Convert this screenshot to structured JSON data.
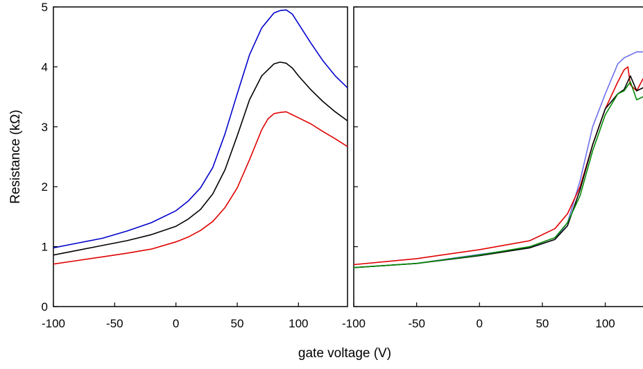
{
  "chart_data": {
    "type": "line",
    "ylabel": "Resistance (kΩ)",
    "xlabel": "gate voltage (V)",
    "y_ticks": [
      "0",
      "1",
      "2",
      "3",
      "4",
      "5"
    ],
    "ylim": [
      0,
      5
    ],
    "grid": false,
    "legend": "none",
    "panels": [
      {
        "id": "left",
        "xlim": [
          -100,
          140
        ],
        "x_ticks": [
          "-100",
          "-50",
          "0",
          "50",
          "100"
        ],
        "series": [
          {
            "color": "#0000cc",
            "x": [
              -100,
              -80,
              -60,
              -40,
              -20,
              0,
              10,
              20,
              30,
              40,
              50,
              60,
              70,
              80,
              85,
              90,
              95,
              100,
              110,
              120,
              130,
              140
            ],
            "y": [
              0.98,
              1.06,
              1.14,
              1.26,
              1.4,
              1.6,
              1.76,
              1.98,
              2.32,
              2.88,
              3.55,
              4.2,
              4.65,
              4.9,
              4.94,
              4.95,
              4.88,
              4.72,
              4.4,
              4.1,
              3.85,
              3.65
            ]
          },
          {
            "color": "#000000",
            "x": [
              -100,
              -80,
              -60,
              -40,
              -20,
              0,
              10,
              20,
              30,
              40,
              50,
              60,
              70,
              80,
              85,
              90,
              95,
              100,
              110,
              120,
              130,
              140
            ],
            "y": [
              0.86,
              0.94,
              1.02,
              1.1,
              1.2,
              1.34,
              1.46,
              1.62,
              1.88,
              2.28,
              2.85,
              3.45,
              3.85,
              4.05,
              4.08,
              4.06,
              3.98,
              3.85,
              3.62,
              3.42,
              3.25,
              3.1
            ]
          },
          {
            "color": "#e00000",
            "x": [
              -100,
              -80,
              -60,
              -40,
              -20,
              0,
              10,
              20,
              30,
              40,
              50,
              60,
              70,
              75,
              80,
              85,
              90,
              95,
              100,
              110,
              120,
              130,
              140
            ],
            "y": [
              0.71,
              0.77,
              0.83,
              0.89,
              0.96,
              1.08,
              1.16,
              1.27,
              1.42,
              1.65,
              1.98,
              2.45,
              2.95,
              3.13,
              3.22,
              3.24,
              3.25,
              3.2,
              3.15,
              3.05,
              2.92,
              2.8,
              2.67
            ]
          }
        ]
      },
      {
        "id": "right",
        "xlim": [
          -100,
          135
        ],
        "x_ticks": [
          "-100",
          "-50",
          "0",
          "50",
          "100"
        ],
        "series": [
          {
            "color": "#7070ee",
            "x": [
              -100,
              -50,
              0,
              40,
              60,
              70,
              80,
              90,
              100,
              110,
              115,
              120,
              125,
              130,
              135
            ],
            "y": [
              0.65,
              0.72,
              0.87,
              0.98,
              1.12,
              1.4,
              2.1,
              3.0,
              3.55,
              4.05,
              4.15,
              4.2,
              4.25,
              4.25,
              4.2
            ]
          },
          {
            "color": "#e00000",
            "x": [
              -100,
              -50,
              0,
              40,
              60,
              70,
              80,
              90,
              100,
              110,
              115,
              118,
              120,
              125,
              130,
              135
            ],
            "y": [
              0.7,
              0.8,
              0.95,
              1.1,
              1.3,
              1.55,
              2.0,
              2.7,
              3.3,
              3.75,
              3.95,
              4.0,
              3.7,
              3.6,
              3.8,
              3.85
            ]
          },
          {
            "color": "#000000",
            "x": [
              -100,
              -50,
              0,
              40,
              60,
              70,
              80,
              90,
              100,
              110,
              115,
              120,
              125,
              130,
              135
            ],
            "y": [
              0.65,
              0.72,
              0.85,
              0.98,
              1.12,
              1.35,
              1.95,
              2.7,
              3.3,
              3.55,
              3.62,
              3.85,
              3.6,
              3.65,
              3.7
            ]
          },
          {
            "color": "#008800",
            "x": [
              -100,
              -50,
              0,
              40,
              60,
              70,
              80,
              90,
              100,
              110,
              115,
              120,
              125,
              130,
              135
            ],
            "y": [
              0.65,
              0.72,
              0.86,
              1.0,
              1.15,
              1.4,
              1.85,
              2.6,
              3.2,
              3.55,
              3.6,
              3.75,
              3.45,
              3.5,
              3.45
            ]
          }
        ]
      }
    ]
  }
}
